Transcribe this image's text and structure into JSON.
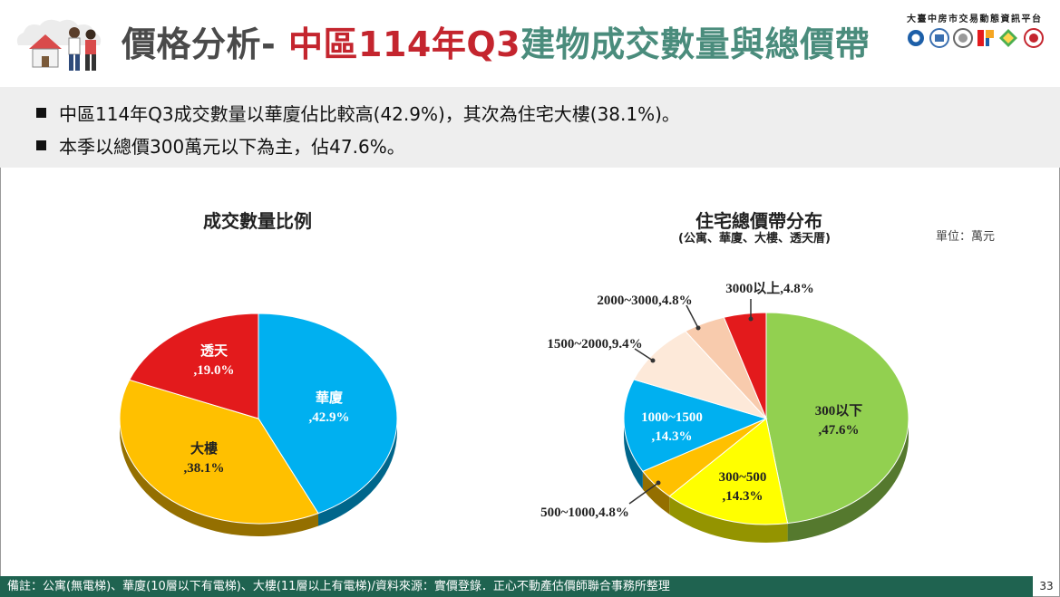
{
  "header": {
    "title_part1": "價格分析-",
    "title_part2": "中區114年Q3",
    "title_part3": "建物成交數量與總價帶",
    "org_name": "大臺中房市交易動態資訊平台"
  },
  "bullets": [
    "中區114年Q3成交數量以華廈佔比較高(42.9%)，其次為住宅大樓(38.1%)。",
    "本季以總價300萬元以下為主，佔47.6%。"
  ],
  "charts": {
    "left_title": "成交數量比例",
    "right_title": "住宅總價帶分布",
    "right_subtitle": "(公寓、華廈、大樓、透天厝)",
    "unit": "單位：萬元"
  },
  "footer": {
    "note": "備註：公寓(無電梯)、華廈(10層以下有電梯)、大樓(11層以上有電梯)/資料來源：實價登錄．正心不動產估價師聯合事務所整理",
    "page": "33"
  },
  "colors": {
    "title_dark": "#4a4a4a",
    "title_red": "#c4252e",
    "title_green": "#4a8c7c",
    "footer_bg": "#1f6350",
    "bullet_bg": "#eeeeee",
    "blue": "#00b0f0",
    "yellow_orange": "#ffc000",
    "red": "#e31a1c",
    "green": "#92d050",
    "yellow": "#ffff00",
    "peach": "#f8cbad",
    "light_peach": "#fde9d9"
  },
  "chart_data": [
    {
      "type": "pie",
      "title": "成交數量比例",
      "slices": [
        {
          "label": "華廈",
          "value": 42.9,
          "value_label": ",42.9%",
          "color": "#00b0f0"
        },
        {
          "label": "大樓",
          "value": 38.1,
          "value_label": ",38.1%",
          "color": "#ffc000"
        },
        {
          "label": "透天",
          "value": 19.0,
          "value_label": ",19.0%",
          "color": "#e31a1c"
        }
      ]
    },
    {
      "type": "pie",
      "title": "住宅總價帶分布",
      "subtitle": "(公寓、華廈、大樓、透天厝)",
      "unit": "單位：萬元",
      "slices": [
        {
          "label": "300以下",
          "value": 47.6,
          "value_label": ",47.6%",
          "color": "#92d050"
        },
        {
          "label": "300~500",
          "value": 14.3,
          "value_label": ",14.3%",
          "color": "#ffff00"
        },
        {
          "label": "500~1000",
          "value": 4.8,
          "value_label": "500~1000,4.8%",
          "color": "#ffc000"
        },
        {
          "label": "1000~1500",
          "value": 14.3,
          "value_label": ",14.3%",
          "color": "#00b0f0"
        },
        {
          "label": "1500~2000",
          "value": 9.4,
          "value_label": "1500~2000,9.4%",
          "color": "#fde9d9"
        },
        {
          "label": "2000~3000",
          "value": 4.8,
          "value_label": "2000~3000,4.8%",
          "color": "#f8cbad"
        },
        {
          "label": "3000以上",
          "value": 4.8,
          "value_label": "3000以上,4.8%",
          "color": "#e31a1c"
        }
      ]
    }
  ]
}
